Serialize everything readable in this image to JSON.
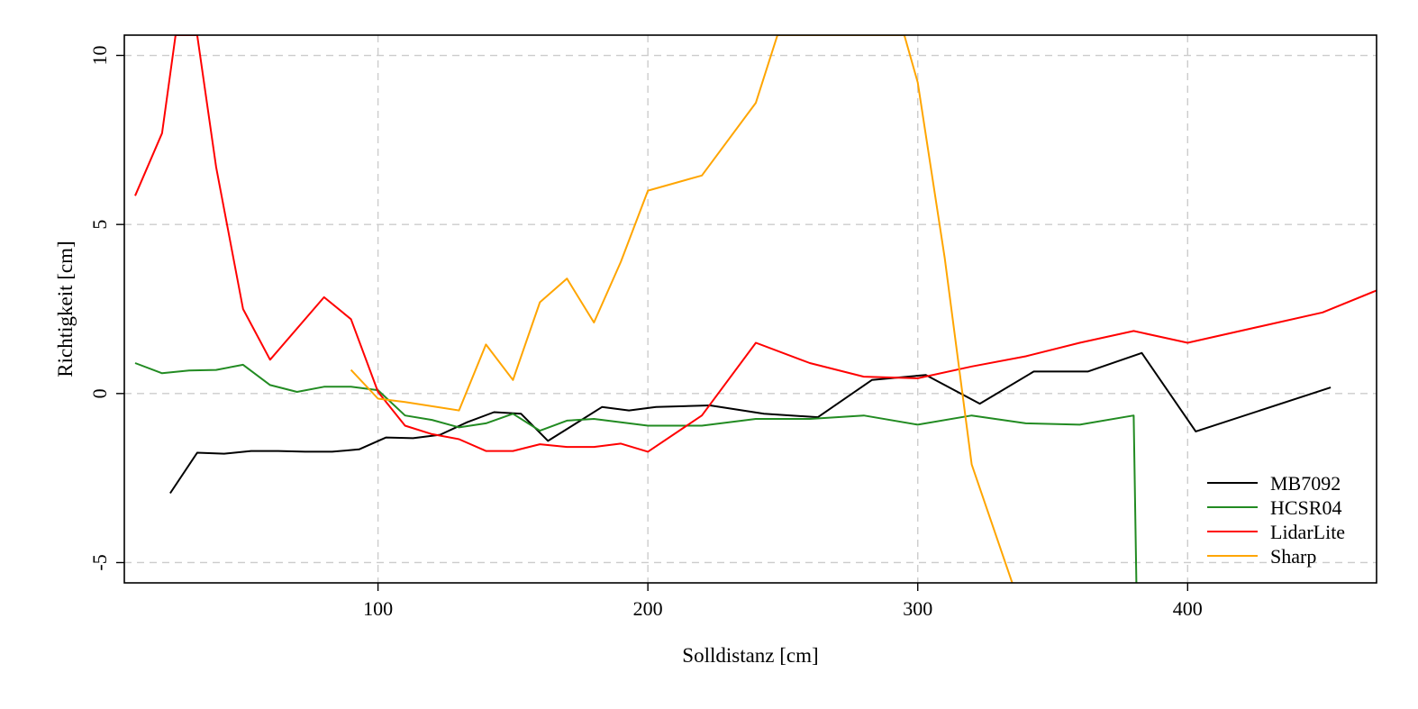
{
  "chart_data": {
    "type": "line",
    "xlabel": "Solldistanz [cm]",
    "ylabel": "Richtigkeit [cm]",
    "xlim": [
      6,
      470
    ],
    "ylim": [
      -5.6,
      10.6
    ],
    "xticks": [
      100,
      200,
      300,
      400
    ],
    "yticks": [
      -5,
      0,
      5,
      10
    ],
    "grid": true,
    "legend_position": "bottom-right",
    "series": [
      {
        "name": "MB7092",
        "color": "#000000",
        "points": [
          [
            23,
            -2.95
          ],
          [
            33,
            -1.75
          ],
          [
            43,
            -1.78
          ],
          [
            53,
            -1.7
          ],
          [
            63,
            -1.7
          ],
          [
            73,
            -1.72
          ],
          [
            83,
            -1.72
          ],
          [
            93,
            -1.65
          ],
          [
            103,
            -1.3
          ],
          [
            113,
            -1.32
          ],
          [
            123,
            -1.22
          ],
          [
            133,
            -0.85
          ],
          [
            143,
            -0.55
          ],
          [
            153,
            -0.6
          ],
          [
            163,
            -1.4
          ],
          [
            173,
            -0.9
          ],
          [
            183,
            -0.4
          ],
          [
            193,
            -0.5
          ],
          [
            203,
            -0.4
          ],
          [
            223,
            -0.35
          ],
          [
            243,
            -0.6
          ],
          [
            263,
            -0.7
          ],
          [
            283,
            0.4
          ],
          [
            303,
            0.55
          ],
          [
            323,
            -0.3
          ],
          [
            343,
            0.65
          ],
          [
            363,
            0.65
          ],
          [
            383,
            1.2
          ],
          [
            403,
            -1.12
          ],
          [
            453,
            0.18
          ]
        ]
      },
      {
        "name": "HCSR04",
        "color": "#228b22",
        "points": [
          [
            10,
            0.9
          ],
          [
            20,
            0.6
          ],
          [
            30,
            0.68
          ],
          [
            40,
            0.7
          ],
          [
            50,
            0.85
          ],
          [
            60,
            0.25
          ],
          [
            70,
            0.05
          ],
          [
            80,
            0.2
          ],
          [
            90,
            0.2
          ],
          [
            100,
            0.1
          ],
          [
            110,
            -0.65
          ],
          [
            120,
            -0.78
          ],
          [
            130,
            -1.0
          ],
          [
            140,
            -0.88
          ],
          [
            150,
            -0.6
          ],
          [
            160,
            -1.1
          ],
          [
            170,
            -0.8
          ],
          [
            180,
            -0.75
          ],
          [
            200,
            -0.95
          ],
          [
            220,
            -0.95
          ],
          [
            240,
            -0.75
          ],
          [
            260,
            -0.75
          ],
          [
            280,
            -0.65
          ],
          [
            300,
            -0.92
          ],
          [
            320,
            -0.65
          ],
          [
            340,
            -0.88
          ],
          [
            360,
            -0.92
          ],
          [
            380,
            -0.65
          ],
          [
            381,
            -5.6
          ]
        ]
      },
      {
        "name": "LidarLite",
        "color": "#ff0000",
        "points": [
          [
            10,
            5.85
          ],
          [
            20,
            7.7
          ],
          [
            25,
            10.6
          ],
          [
            33,
            10.6
          ],
          [
            40,
            6.7
          ],
          [
            50,
            2.5
          ],
          [
            60,
            1.0
          ],
          [
            80,
            2.85
          ],
          [
            90,
            2.2
          ],
          [
            100,
            0.05
          ],
          [
            110,
            -0.95
          ],
          [
            120,
            -1.2
          ],
          [
            130,
            -1.35
          ],
          [
            140,
            -1.7
          ],
          [
            150,
            -1.7
          ],
          [
            160,
            -1.5
          ],
          [
            170,
            -1.58
          ],
          [
            180,
            -1.58
          ],
          [
            190,
            -1.48
          ],
          [
            200,
            -1.72
          ],
          [
            220,
            -0.65
          ],
          [
            240,
            1.5
          ],
          [
            260,
            0.9
          ],
          [
            280,
            0.5
          ],
          [
            300,
            0.45
          ],
          [
            320,
            0.8
          ],
          [
            340,
            1.1
          ],
          [
            360,
            1.5
          ],
          [
            380,
            1.85
          ],
          [
            400,
            1.5
          ],
          [
            450,
            2.4
          ],
          [
            470,
            3.05
          ]
        ]
      },
      {
        "name": "Sharp",
        "color": "#ffa500",
        "points": [
          [
            90,
            0.7
          ],
          [
            100,
            -0.15
          ],
          [
            110,
            -0.25
          ],
          [
            130,
            -0.5
          ],
          [
            140,
            1.45
          ],
          [
            150,
            0.4
          ],
          [
            160,
            2.7
          ],
          [
            170,
            3.4
          ],
          [
            180,
            2.1
          ],
          [
            190,
            3.9
          ],
          [
            200,
            6.0
          ],
          [
            220,
            6.45
          ],
          [
            240,
            8.6
          ],
          [
            248,
            10.6
          ],
          [
            295,
            10.6
          ],
          [
            300,
            9.2
          ],
          [
            310,
            4.0
          ],
          [
            320,
            -2.1
          ],
          [
            335,
            -5.6
          ]
        ]
      }
    ]
  }
}
